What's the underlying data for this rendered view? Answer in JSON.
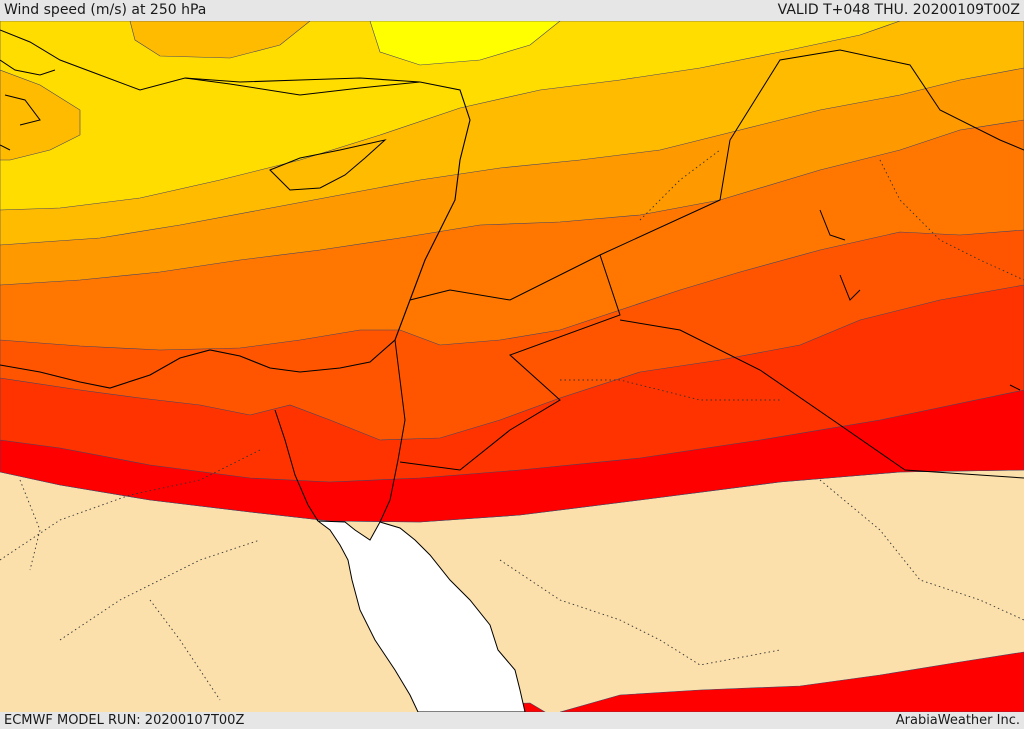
{
  "header": {
    "title": "Wind speed (m/s) at 250 hPa",
    "valid": "VALID T+048 THU. 20200109T00Z"
  },
  "footer": {
    "model_run": "ECMWF MODEL RUN: 20200107T00Z",
    "credit": "ArabiaWeather Inc."
  },
  "map": {
    "colors": {
      "land_bg": "#fce0ac",
      "sea": "#ffffff",
      "band_yellow": "#ffff00",
      "band_gold": "#ffdd00",
      "band_amber": "#ffbb00",
      "band_orange": "#ff9900",
      "band_dark_orange": "#ff7700",
      "band_orange_red": "#ff5500",
      "band_red_orange": "#ff3300",
      "band_red": "#ff0000",
      "contour_line": "#555577",
      "coastline": "#000000"
    }
  }
}
